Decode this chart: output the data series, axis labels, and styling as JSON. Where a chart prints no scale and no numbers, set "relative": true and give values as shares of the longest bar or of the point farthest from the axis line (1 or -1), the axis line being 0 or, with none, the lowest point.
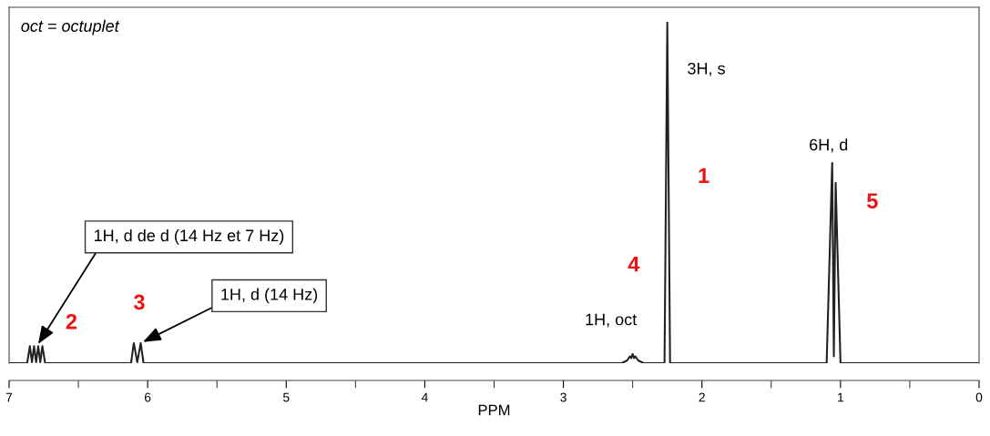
{
  "chart_data": {
    "type": "line",
    "relative": true,
    "xlabel": "PPM",
    "xlim": [
      7,
      0
    ],
    "xticks": [
      7,
      6,
      5,
      4,
      3,
      2,
      1,
      0
    ],
    "tick_labels": "x",
    "grid": false,
    "marker": "none",
    "line_style": "solid",
    "series": [
      {
        "color": "#222222",
        "x": [
          7.0,
          6.87,
          6.85,
          6.835,
          6.82,
          6.805,
          6.79,
          6.775,
          6.76,
          6.74,
          6.12,
          6.1,
          6.075,
          6.05,
          6.03,
          2.58,
          2.54,
          2.52,
          2.51,
          2.5,
          2.49,
          2.48,
          2.46,
          2.42,
          2.27,
          2.25,
          2.23,
          1.1,
          1.06,
          1.048,
          1.035,
          1.0,
          0.0
        ],
        "values": [
          0,
          0,
          0.05,
          0.003,
          0.05,
          0.003,
          0.05,
          0.003,
          0.05,
          0,
          0,
          0.059,
          0.003,
          0.059,
          0,
          0,
          0.008,
          0.02,
          0.015,
          0.027,
          0.015,
          0.02,
          0.008,
          0,
          0,
          1,
          0,
          0,
          0.588,
          0.02,
          0.53,
          0,
          0
        ]
      }
    ],
    "annotations": [
      "oct = octuplet",
      "3H, s",
      {
        "text": "6H, d",
        "x": 1.06,
        "y": 0.588
      },
      {
        "text": "1H, oct",
        "x": 2.5,
        "y": 0.027
      },
      {
        "text": "1H, d de d (14 Hz et 7 Hz)",
        "x": 6.8,
        "y": 0.05
      },
      {
        "text": "1H, d (14 Hz)",
        "x": 6.05,
        "y": 0.059
      },
      "1",
      {
        "text": "2",
        "x": 6.8,
        "y": 0.05
      },
      {
        "text": "3",
        "x": 6.08,
        "y": 0.059
      },
      "4",
      "5"
    ]
  }
}
